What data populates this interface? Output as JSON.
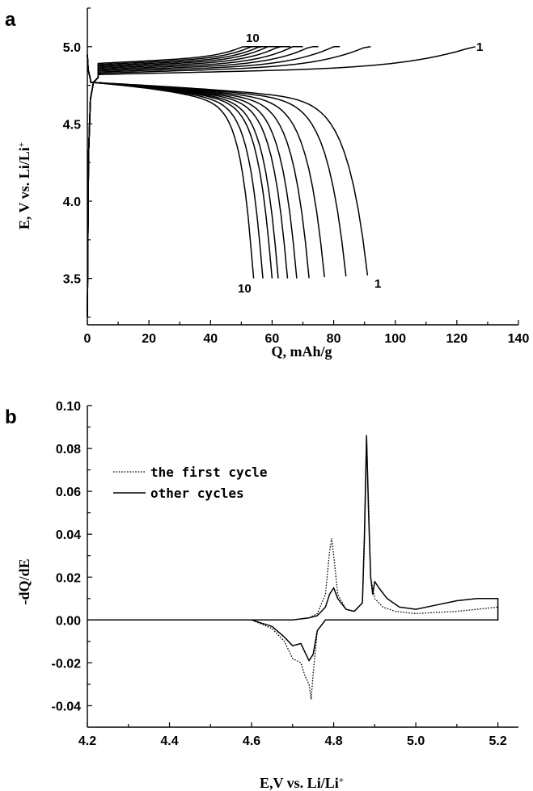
{
  "chart_data": [
    {
      "panel": "a",
      "type": "line",
      "xlabel": "Q, mAh/g",
      "ylabel": "E, V  vs. Li/Li+",
      "xlim": [
        0,
        140
      ],
      "ylim": [
        3.2,
        5.25
      ],
      "xticks": [
        "0",
        "20",
        "40",
        "60",
        "80",
        "100",
        "120",
        "140"
      ],
      "yticks": [
        "3.5",
        "4.0",
        "4.5",
        "5.0"
      ],
      "annotations": [
        "10",
        "1",
        "10",
        "1"
      ],
      "charge_end_capacity": [
        126,
        92,
        82,
        75,
        70,
        66,
        63,
        61,
        59,
        57
      ],
      "discharge_end_capacity": [
        91,
        84,
        77,
        72,
        68,
        65,
        62,
        60,
        57,
        54
      ],
      "cycles": [
        "1",
        "2",
        "3",
        "4",
        "5",
        "6",
        "7",
        "8",
        "9",
        "10"
      ]
    },
    {
      "panel": "b",
      "type": "line",
      "xlabel": "E,V  vs. Li/Li+",
      "ylabel": "-dQ/dE",
      "xlim": [
        4.2,
        5.25
      ],
      "ylim": [
        -0.05,
        0.1
      ],
      "xticks": [
        "4.2",
        "4.4",
        "4.6",
        "4.8",
        "5.0",
        "5.2"
      ],
      "yticks": [
        "-0.04",
        "-0.02",
        "0.00",
        "0.02",
        "0.04",
        "0.06",
        "0.08",
        "0.10"
      ],
      "legend": [
        "the first cycle",
        "other cycles"
      ],
      "series": [
        {
          "name": "the first cycle",
          "style": "dotted",
          "x": [
            4.2,
            4.6,
            4.65,
            4.68,
            4.7,
            4.72,
            4.73,
            4.74,
            4.745,
            4.75,
            4.76,
            4.78,
            4.8,
            4.82,
            4.85,
            4.87,
            4.88,
            4.89,
            4.9,
            4.92,
            4.95,
            5.0,
            5.05,
            5.1,
            5.15,
            5.18,
            5.2,
            5.2,
            5.1,
            5.0,
            4.95,
            4.92,
            4.9,
            4.89,
            4.885,
            4.88,
            4.875,
            4.87,
            4.85,
            4.83,
            4.81,
            4.8,
            4.795,
            4.79,
            4.78,
            4.76,
            4.74,
            4.7,
            4.6,
            4.2
          ],
          "y": [
            0,
            0,
            -0.004,
            -0.01,
            -0.018,
            -0.02,
            -0.026,
            -0.03,
            -0.037,
            -0.025,
            -0.005,
            0,
            0,
            0,
            0,
            0,
            0,
            0,
            0,
            0,
            0,
            0,
            0,
            0,
            0,
            0,
            0,
            0.006,
            0.004,
            0.003,
            0.004,
            0.006,
            0.01,
            0.02,
            0.055,
            0.083,
            0.035,
            0.008,
            0.004,
            0.005,
            0.012,
            0.03,
            0.038,
            0.032,
            0.012,
            0.003,
            0.001,
            0,
            0,
            0
          ]
        },
        {
          "name": "other cycles",
          "style": "solid",
          "x": [
            4.2,
            4.6,
            4.65,
            4.68,
            4.7,
            4.72,
            4.73,
            4.74,
            4.75,
            4.76,
            4.78,
            4.8,
            4.85,
            4.9,
            5.0,
            5.1,
            5.19,
            5.2,
            5.2,
            5.15,
            5.1,
            5.05,
            5.0,
            4.96,
            4.93,
            4.91,
            4.9,
            4.895,
            4.89,
            4.885,
            4.88,
            4.875,
            4.87,
            4.85,
            4.83,
            4.81,
            4.8,
            4.79,
            4.78,
            4.76,
            4.74,
            4.7,
            4.6,
            4.2
          ],
          "y": [
            0,
            0,
            -0.003,
            -0.008,
            -0.012,
            -0.011,
            -0.015,
            -0.019,
            -0.016,
            -0.005,
            0,
            0,
            0,
            0,
            0,
            0,
            0,
            0,
            0.01,
            0.01,
            0.009,
            0.007,
            0.005,
            0.006,
            0.01,
            0.015,
            0.018,
            0.012,
            0.02,
            0.05,
            0.086,
            0.04,
            0.008,
            0.004,
            0.005,
            0.01,
            0.015,
            0.012,
            0.006,
            0.002,
            0.001,
            0,
            0,
            0
          ]
        }
      ]
    }
  ]
}
